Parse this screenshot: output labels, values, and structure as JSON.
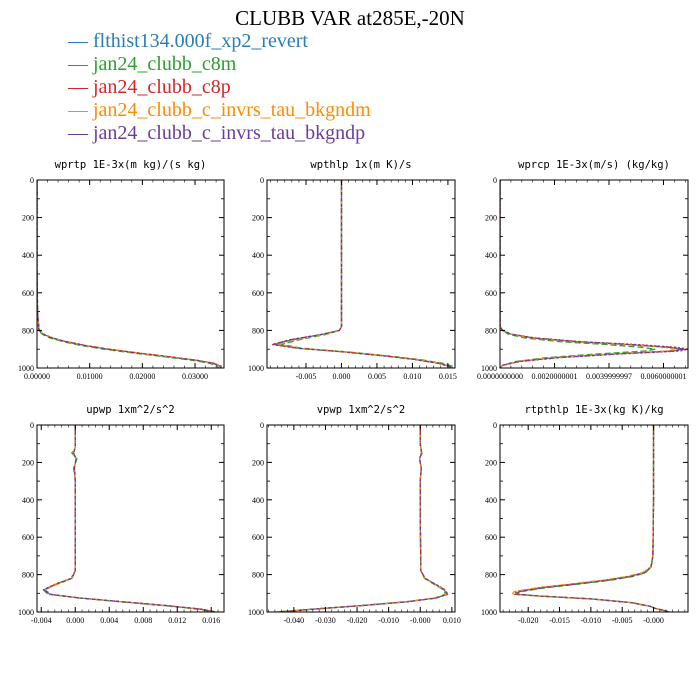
{
  "figure": {
    "title": "CLUBB VAR at285E,-20N"
  },
  "legend": [
    {
      "name": "flthist134.000f_xp2_revert",
      "color": "#2a7db5"
    },
    {
      "name": "jan24_clubb_c8m",
      "color": "#2ca02c"
    },
    {
      "name": "jan24_clubb_c8p",
      "color": "#d62728"
    },
    {
      "name": "jan24_clubb_c_invrs_tau_bkgndm",
      "color": "#ff8c00"
    },
    {
      "name": "jan24_clubb_c_invrs_tau_bkgndp",
      "color": "#6a3d9a"
    }
  ],
  "chart_data": [
    {
      "type": "line",
      "title": "wprtp  1E-3x(m kg)/(s kg)",
      "xlim": [
        0,
        0.0355
      ],
      "ylim": [
        1000,
        0
      ],
      "xticks": [
        0,
        0.01,
        0.02,
        0.03
      ],
      "xtick_labels": [
        "0.00000",
        "0.01000",
        "0.02000",
        "0.03000"
      ],
      "yticks": [
        0,
        200,
        400,
        600,
        800,
        1000
      ],
      "ytick_labels": [
        "0",
        "200",
        "400",
        "600",
        "800",
        "1000"
      ],
      "y": [
        0,
        300,
        470,
        700,
        800,
        820,
        840,
        860,
        880,
        900,
        920,
        940,
        960,
        975,
        990,
        1000
      ],
      "series": [
        {
          "name": "flthist134.000f_xp2_revert",
          "x": [
            0,
            0,
            0,
            0.0001,
            0.0004,
            0.0012,
            0.0028,
            0.0055,
            0.009,
            0.0135,
            0.019,
            0.025,
            0.0305,
            0.0335,
            0.0348,
            0.035
          ]
        },
        {
          "name": "jan24_clubb_c8m",
          "x": [
            0,
            0,
            0,
            0.0001,
            0.0003,
            0.001,
            0.0024,
            0.005,
            0.0083,
            0.0127,
            0.0182,
            0.0242,
            0.0297,
            0.0328,
            0.0342,
            0.0345
          ]
        },
        {
          "name": "jan24_clubb_c8p",
          "x": [
            0,
            0,
            0,
            0.0001,
            0.0004,
            0.0013,
            0.003,
            0.0058,
            0.0093,
            0.0138,
            0.0193,
            0.0253,
            0.0307,
            0.0337,
            0.035,
            0.0352
          ]
        },
        {
          "name": "jan24_clubb_c_invrs_tau_bkgndm",
          "x": [
            0,
            0,
            0,
            0.0001,
            0.0004,
            0.0012,
            0.0029,
            0.0056,
            0.0091,
            0.0136,
            0.0191,
            0.0251,
            0.0305,
            0.0336,
            0.0349,
            0.0351
          ]
        },
        {
          "name": "jan24_clubb_c_invrs_tau_bkgndp",
          "x": [
            0,
            0,
            0,
            0.0001,
            0.0004,
            0.0012,
            0.0028,
            0.0055,
            0.009,
            0.0135,
            0.019,
            0.025,
            0.0304,
            0.0334,
            0.0347,
            0.0349
          ]
        }
      ]
    },
    {
      "type": "line",
      "title": "wpthlp  1x(m K)/s",
      "xlim": [
        -0.0105,
        0.016
      ],
      "ylim": [
        1000,
        0
      ],
      "xticks": [
        -0.005,
        0,
        0.005,
        0.01,
        0.015
      ],
      "xtick_labels": [
        "-0.005",
        "0.000",
        "0.005",
        "0.010",
        "0.015"
      ],
      "yticks": [
        0,
        200,
        400,
        600,
        800,
        1000
      ],
      "ytick_labels": [
        "0",
        "200",
        "400",
        "600",
        "800",
        "1000"
      ],
      "y": [
        0,
        200,
        400,
        600,
        780,
        800,
        820,
        850,
        875,
        895,
        915,
        935,
        955,
        975,
        990,
        1000
      ],
      "series": [
        {
          "name": "flthist134.000f_xp2_revert",
          "x": [
            0,
            0,
            0,
            0,
            0,
            -0.0003,
            -0.0025,
            -0.007,
            -0.0095,
            -0.006,
            0.0005,
            0.006,
            0.0105,
            0.0138,
            0.0152,
            0.0156
          ]
        },
        {
          "name": "jan24_clubb_c8m",
          "x": [
            0,
            0,
            0,
            0,
            0,
            -0.0003,
            -0.002,
            -0.006,
            -0.0085,
            -0.0055,
            0.001,
            0.0065,
            0.011,
            0.0143,
            0.0156,
            0.016
          ]
        },
        {
          "name": "jan24_clubb_c8p",
          "x": [
            0,
            0,
            0,
            0,
            0,
            -0.0003,
            -0.0027,
            -0.0073,
            -0.0098,
            -0.0062,
            0.0004,
            0.0058,
            0.0103,
            0.0136,
            0.015,
            0.0154
          ]
        },
        {
          "name": "jan24_clubb_c_invrs_tau_bkgndm",
          "x": [
            0,
            0,
            0,
            0,
            0,
            -0.0003,
            -0.0022,
            -0.0065,
            -0.009,
            -0.0058,
            0.0008,
            0.0062,
            0.0107,
            0.014,
            0.0153,
            0.0157
          ]
        },
        {
          "name": "jan24_clubb_c_invrs_tau_bkgndp",
          "x": [
            0,
            0,
            0,
            0,
            0,
            -0.0003,
            -0.0026,
            -0.0072,
            -0.0097,
            -0.0061,
            0.0004,
            0.0059,
            0.0104,
            0.0137,
            0.0151,
            0.0155
          ]
        }
      ]
    },
    {
      "type": "line",
      "title": "wprcp  1E-3x(m/s) (kg/kg)",
      "xlim": [
        0,
        0.0069
      ],
      "ylim": [
        1000,
        0
      ],
      "xticks": [
        0,
        0.002,
        0.004,
        0.006
      ],
      "xtick_labels": [
        "0.0000000000",
        "0.0020000001",
        "0.0039999997",
        "0.0060000001"
      ],
      "yticks": [
        0,
        200,
        400,
        600,
        800,
        1000
      ],
      "ytick_labels": [
        "0",
        "200",
        "400",
        "600",
        "800",
        "1000"
      ],
      "y": [
        0,
        600,
        780,
        800,
        820,
        840,
        860,
        875,
        890,
        900,
        910,
        925,
        945,
        965,
        985,
        1000
      ],
      "series": [
        {
          "name": "flthist134.000f_xp2_revert",
          "x": [
            0,
            0,
            0,
            0.0001,
            0.0004,
            0.0012,
            0.0028,
            0.0047,
            0.0062,
            0.0067,
            0.0063,
            0.0042,
            0.002,
            0.0007,
            0.0001,
            0
          ]
        },
        {
          "name": "jan24_clubb_c8m",
          "x": [
            0,
            0,
            0,
            0.0001,
            0.0003,
            0.0009,
            0.0022,
            0.0039,
            0.0052,
            0.0057,
            0.0053,
            0.0036,
            0.0017,
            0.0006,
            0.0001,
            0
          ]
        },
        {
          "name": "jan24_clubb_c8p",
          "x": [
            0,
            0,
            0,
            0.0001,
            0.0004,
            0.0013,
            0.003,
            0.005,
            0.0065,
            0.0069,
            0.0066,
            0.0045,
            0.0022,
            0.0008,
            0.0001,
            0
          ]
        },
        {
          "name": "jan24_clubb_c_invrs_tau_bkgndm",
          "x": [
            0,
            0,
            0,
            0.0001,
            0.0004,
            0.0011,
            0.0026,
            0.0045,
            0.006,
            0.0065,
            0.0061,
            0.0041,
            0.0019,
            0.0007,
            0.0001,
            0
          ]
        },
        {
          "name": "jan24_clubb_c_invrs_tau_bkgndp",
          "x": [
            0,
            0,
            0,
            0.0001,
            0.0004,
            0.0012,
            0.0029,
            0.0048,
            0.0063,
            0.0068,
            0.0064,
            0.0043,
            0.0021,
            0.0007,
            0.0001,
            0
          ]
        }
      ]
    },
    {
      "type": "line",
      "title": "upwp  1xm^2/s^2",
      "xlim": [
        -0.0045,
        0.0175
      ],
      "ylim": [
        1000,
        0
      ],
      "xticks": [
        -0.004,
        0,
        0.004,
        0.008,
        0.012,
        0.016
      ],
      "xtick_labels": [
        "-0.004",
        "0.000",
        "0.004",
        "0.008",
        "0.012",
        "0.016"
      ],
      "yticks": [
        0,
        200,
        400,
        600,
        800,
        1000
      ],
      "ytick_labels": [
        "0",
        "200",
        "400",
        "600",
        "800",
        "1000"
      ],
      "y": [
        0,
        120,
        150,
        180,
        230,
        300,
        500,
        780,
        820,
        850,
        880,
        905,
        925,
        945,
        965,
        985,
        1000
      ],
      "series": [
        {
          "name": "flthist134.000f_xp2_revert",
          "x": [
            0,
            0,
            -0.0002,
            0.0001,
            -0.0001,
            0,
            0,
            0,
            -0.0004,
            -0.0022,
            -0.0036,
            -0.003,
            0.0005,
            0.0055,
            0.0105,
            0.0148,
            0.0165
          ]
        },
        {
          "name": "jan24_clubb_c8m",
          "x": [
            0,
            0,
            -0.0004,
            0.0002,
            -0.0002,
            0,
            0,
            0,
            -0.0004,
            -0.002,
            -0.0038,
            -0.0032,
            0.0003,
            0.0052,
            0.0102,
            0.0145,
            0.0162
          ]
        },
        {
          "name": "jan24_clubb_c8p",
          "x": [
            0,
            0,
            -0.0002,
            0.0001,
            -0.0001,
            0,
            0,
            0,
            -0.0005,
            -0.0023,
            -0.0037,
            -0.003,
            0.0006,
            0.0056,
            0.0106,
            0.0149,
            0.0166
          ]
        },
        {
          "name": "jan24_clubb_c_invrs_tau_bkgndm",
          "x": [
            0,
            0,
            -0.0003,
            0.0001,
            -0.0001,
            0,
            0,
            0,
            -0.0004,
            -0.0021,
            -0.0035,
            -0.0029,
            0.0005,
            0.0054,
            0.0104,
            0.0147,
            0.0164
          ]
        },
        {
          "name": "jan24_clubb_c_invrs_tau_bkgndp",
          "x": [
            0,
            0,
            -0.0002,
            0.0001,
            -0.0001,
            0,
            0,
            0,
            -0.0004,
            -0.0022,
            -0.0036,
            -0.003,
            0.0005,
            0.0055,
            0.0105,
            0.0148,
            0.0165
          ]
        }
      ]
    },
    {
      "type": "line",
      "title": "vpwp  1xm^2/s^2",
      "xlim": [
        -0.0485,
        0.011
      ],
      "ylim": [
        1000,
        0
      ],
      "xticks": [
        -0.04,
        -0.03,
        -0.02,
        -0.01,
        0,
        0.01
      ],
      "xtick_labels": [
        "-0.040",
        "-0.030",
        "-0.020",
        "-0.010",
        "-0.000",
        "0.010"
      ],
      "yticks": [
        0,
        200,
        400,
        600,
        800,
        1000
      ],
      "ytick_labels": [
        "0",
        "200",
        "400",
        "600",
        "800",
        "1000"
      ],
      "y": [
        0,
        100,
        150,
        180,
        230,
        300,
        500,
        780,
        820,
        850,
        880,
        905,
        925,
        945,
        965,
        985,
        1000
      ],
      "series": [
        {
          "name": "flthist134.000f_xp2_revert",
          "x": [
            0,
            0,
            0.0004,
            -0.0002,
            0.0003,
            0,
            0,
            0.0002,
            0.0015,
            0.0045,
            0.0075,
            0.0085,
            0.005,
            -0.004,
            -0.018,
            -0.034,
            -0.045
          ]
        },
        {
          "name": "jan24_clubb_c8m",
          "x": [
            0,
            0,
            0.0006,
            -0.0003,
            0.0004,
            0,
            0,
            0.0002,
            0.0013,
            0.0042,
            0.0072,
            0.008,
            0.0045,
            -0.0045,
            -0.0185,
            -0.0345,
            -0.0455
          ]
        },
        {
          "name": "jan24_clubb_c8p",
          "x": [
            0,
            0,
            0.0004,
            -0.0002,
            0.0003,
            0,
            0,
            0.0002,
            0.0016,
            0.0047,
            0.0078,
            0.0088,
            0.0052,
            -0.0038,
            -0.0178,
            -0.0338,
            -0.0448
          ]
        },
        {
          "name": "jan24_clubb_c_invrs_tau_bkgndm",
          "x": [
            0,
            0,
            0.0005,
            -0.0002,
            0.0003,
            0,
            0,
            0.0002,
            0.0014,
            0.0044,
            0.0074,
            0.0083,
            0.0048,
            -0.0042,
            -0.0182,
            -0.0342,
            -0.0452
          ]
        },
        {
          "name": "jan24_clubb_c_invrs_tau_bkgndp",
          "x": [
            0,
            0,
            0.0004,
            -0.0002,
            0.0003,
            0,
            0,
            0.0002,
            0.0015,
            0.0046,
            0.0076,
            0.0086,
            0.0051,
            -0.0039,
            -0.0179,
            -0.0339,
            -0.0449
          ]
        }
      ]
    },
    {
      "type": "line",
      "title": "rtpthlp  1E-3x(kg K)/kg",
      "xlim": [
        -0.0245,
        0.0055
      ],
      "ylim": [
        1000,
        0
      ],
      "xticks": [
        -0.02,
        -0.015,
        -0.01,
        -0.005,
        0
      ],
      "xtick_labels": [
        "-0.020",
        "-0.015",
        "-0.010",
        "-0.005",
        "-0.000"
      ],
      "yticks": [
        0,
        200,
        400,
        600,
        800,
        1000
      ],
      "ytick_labels": [
        "0",
        "200",
        "400",
        "600",
        "800",
        "1000"
      ],
      "y": [
        0,
        400,
        700,
        760,
        790,
        810,
        830,
        850,
        870,
        890,
        905,
        915,
        930,
        950,
        970,
        980,
        990,
        1000
      ],
      "series": [
        {
          "name": "flthist134.000f_xp2_revert",
          "x": [
            0,
            0,
            -0.0001,
            -0.0004,
            -0.0015,
            -0.0038,
            -0.0075,
            -0.0125,
            -0.0178,
            -0.0215,
            -0.022,
            -0.018,
            -0.01,
            -0.0035,
            -0.0005,
            0.0002,
            0.0015,
            0.0025
          ]
        },
        {
          "name": "jan24_clubb_c8m",
          "x": [
            0,
            0,
            -0.0001,
            -0.0004,
            -0.0013,
            -0.0033,
            -0.0068,
            -0.0118,
            -0.0172,
            -0.021,
            -0.0218,
            -0.0178,
            -0.0098,
            -0.0034,
            -0.0005,
            0.0002,
            0.0014,
            0.0024
          ]
        },
        {
          "name": "jan24_clubb_c8p",
          "x": [
            0,
            0,
            -0.0001,
            -0.0004,
            -0.0016,
            -0.004,
            -0.0078,
            -0.0128,
            -0.0181,
            -0.0218,
            -0.0223,
            -0.0182,
            -0.0101,
            -0.0036,
            -0.0005,
            0.0002,
            0.0016,
            0.0026
          ]
        },
        {
          "name": "jan24_clubb_c_invrs_tau_bkgndm",
          "x": [
            0,
            0,
            -0.0001,
            -0.0005,
            -0.0018,
            -0.0043,
            -0.0082,
            -0.0133,
            -0.0186,
            -0.0222,
            -0.0226,
            -0.0184,
            -0.0103,
            -0.0037,
            -0.0006,
            0.0002,
            0.0015,
            0.0025
          ]
        },
        {
          "name": "jan24_clubb_c_invrs_tau_bkgndp",
          "x": [
            0,
            0,
            -0.0001,
            -0.0004,
            -0.0014,
            -0.0036,
            -0.0072,
            -0.0122,
            -0.0176,
            -0.0213,
            -0.0219,
            -0.0179,
            -0.0099,
            -0.0035,
            -0.0005,
            0.0002,
            0.0015,
            0.0025
          ]
        }
      ]
    }
  ]
}
